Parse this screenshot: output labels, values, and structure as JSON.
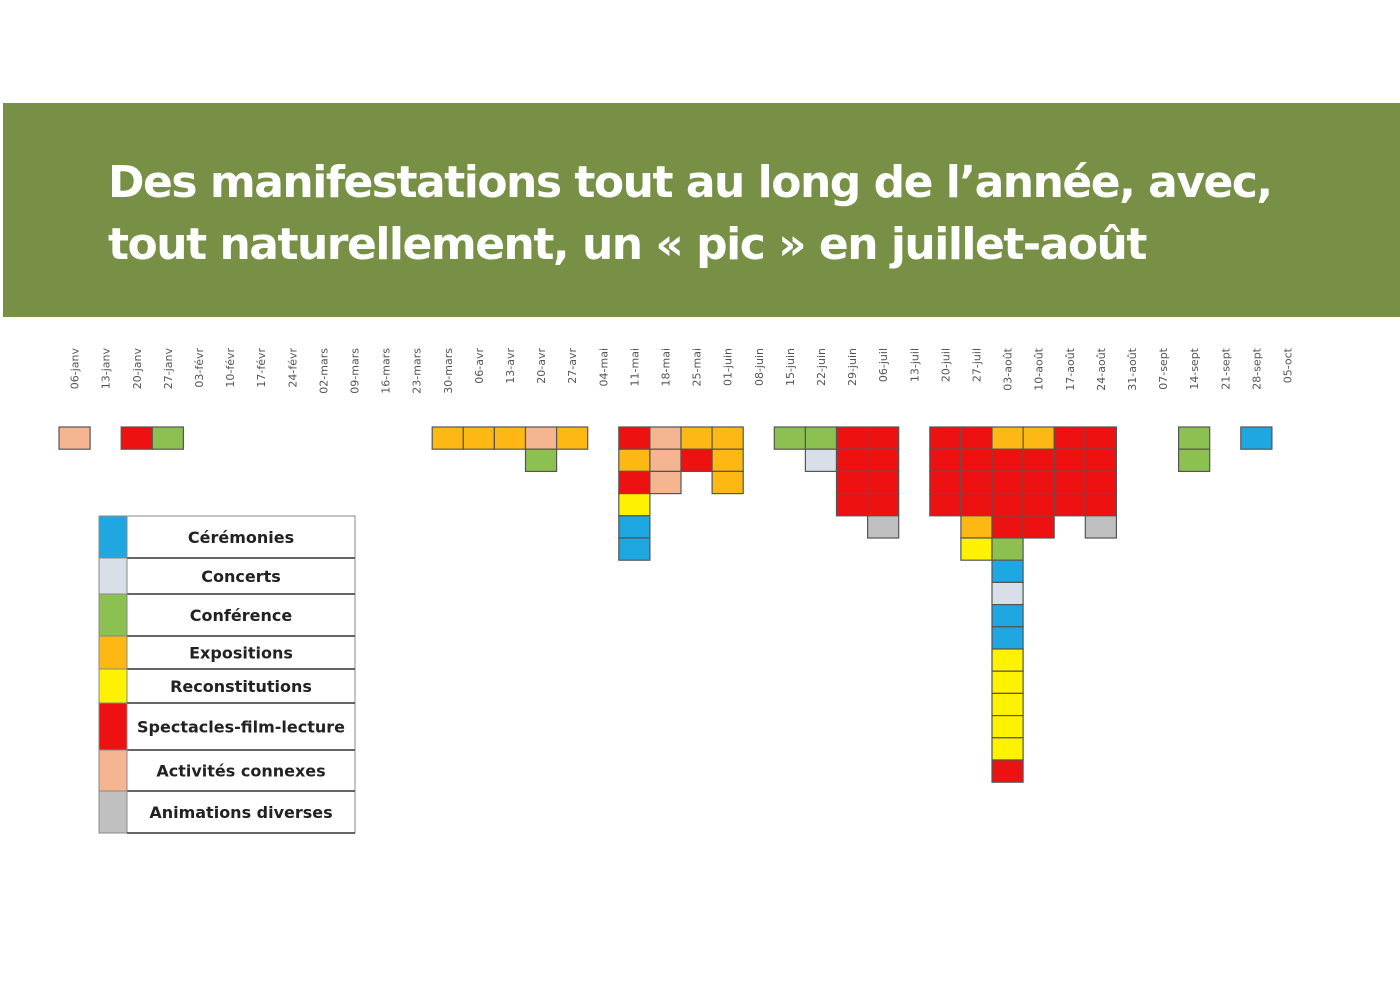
{
  "title": "Des manifestations tout au long de l’année, avec,\ntout naturellement, un « pic » en juillet-août",
  "chart_data": {
    "type": "heatmap",
    "title": "Des manifestations tout au long de l’année, avec, tout naturellement, un « pic » en juillet-août",
    "x": [
      "06-janv",
      "13-janv",
      "20-janv",
      "27-janv",
      "03-févr",
      "10-févr",
      "17-févr",
      "24-févr",
      "02-mars",
      "09-mars",
      "16-mars",
      "23-mars",
      "30-mars",
      "06-avr",
      "13-avr",
      "20-avr",
      "27-avr",
      "04-mai",
      "11-mai",
      "18-mai",
      "25-mai",
      "01-juin",
      "08-juin",
      "15-juin",
      "22-juin",
      "29-juin",
      "06-juil",
      "13-juil",
      "20-juil",
      "27-juil",
      "03-août",
      "10-août",
      "17-août",
      "24-août",
      "31-août",
      "07-sept",
      "14-sept",
      "21-sept",
      "28-sept",
      "05-oct"
    ],
    "categories": [
      {
        "name": "Cérémonies",
        "color": "#1ea7e0"
      },
      {
        "name": "Concerts",
        "color": "#d8dfe8"
      },
      {
        "name": "Conférence",
        "color": "#8cc152"
      },
      {
        "name": "Expositions",
        "color": "#fdb813"
      },
      {
        "name": "Reconstitutions",
        "color": "#fef200"
      },
      {
        "name": "Spectacles-film-lecture",
        "color": "#ee1111"
      },
      {
        "name": "Activités connexes",
        "color": "#f4b590"
      },
      {
        "name": "Animations diverses",
        "color": "#c0c0c0"
      }
    ],
    "events_by_week": {
      "06-janv": [
        "Activités connexes"
      ],
      "20-janv": [
        "Spectacles-film-lecture"
      ],
      "27-janv": [
        "Conférence"
      ],
      "30-mars": [
        "Expositions"
      ],
      "06-avr": [
        "Expositions"
      ],
      "13-avr": [
        "Expositions"
      ],
      "20-avr": [
        "Activités connexes",
        "Conférence"
      ],
      "27-avr": [
        "Expositions"
      ],
      "11-mai": [
        "Spectacles-film-lecture",
        "Expositions",
        "Spectacles-film-lecture",
        "Reconstitutions",
        "Cérémonies",
        "Cérémonies"
      ],
      "18-mai": [
        "Activités connexes",
        "Activités connexes",
        "Activités connexes"
      ],
      "25-mai": [
        "Expositions",
        "Spectacles-film-lecture"
      ],
      "01-juin": [
        "Expositions",
        "Expositions",
        "Expositions"
      ],
      "15-juin": [
        "Conférence"
      ],
      "22-juin": [
        "Conférence",
        "Concerts"
      ],
      "29-juin": [
        "Spectacles-film-lecture",
        "Spectacles-film-lecture",
        "Spectacles-film-lecture",
        "Spectacles-film-lecture"
      ],
      "06-juil": [
        "Spectacles-film-lecture",
        "Spectacles-film-lecture",
        "Spectacles-film-lecture",
        "Spectacles-film-lecture",
        "Animations diverses"
      ],
      "20-juil": [
        "Spectacles-film-lecture",
        "Spectacles-film-lecture",
        "Spectacles-film-lecture",
        "Spectacles-film-lecture"
      ],
      "27-juil": [
        "Spectacles-film-lecture",
        "Spectacles-film-lecture",
        "Spectacles-film-lecture",
        "Spectacles-film-lecture",
        "Expositions",
        "Reconstitutions"
      ],
      "03-août": [
        "Expositions",
        "Spectacles-film-lecture",
        "Spectacles-film-lecture",
        "Spectacles-film-lecture",
        "Spectacles-film-lecture",
        "Conférence",
        "Cérémonies",
        "Concerts",
        "Cérémonies",
        "Cérémonies",
        "Reconstitutions",
        "Reconstitutions",
        "Reconstitutions",
        "Reconstitutions",
        "Reconstitutions",
        "Spectacles-film-lecture"
      ],
      "10-août": [
        "Expositions",
        "Spectacles-film-lecture",
        "Spectacles-film-lecture",
        "Spectacles-film-lecture",
        "Spectacles-film-lecture"
      ],
      "17-août": [
        "Spectacles-film-lecture",
        "Spectacles-film-lecture",
        "Spectacles-film-lecture",
        "Spectacles-film-lecture"
      ],
      "24-août": [
        "Spectacles-film-lecture",
        "Spectacles-film-lecture",
        "Spectacles-film-lecture",
        "Spectacles-film-lecture",
        "Animations diverses"
      ],
      "14-sept": [
        "Conférence",
        "Conférence"
      ],
      "28-sept": [
        "Cérémonies"
      ]
    },
    "legend_position": "bottom-left",
    "grid": false
  }
}
